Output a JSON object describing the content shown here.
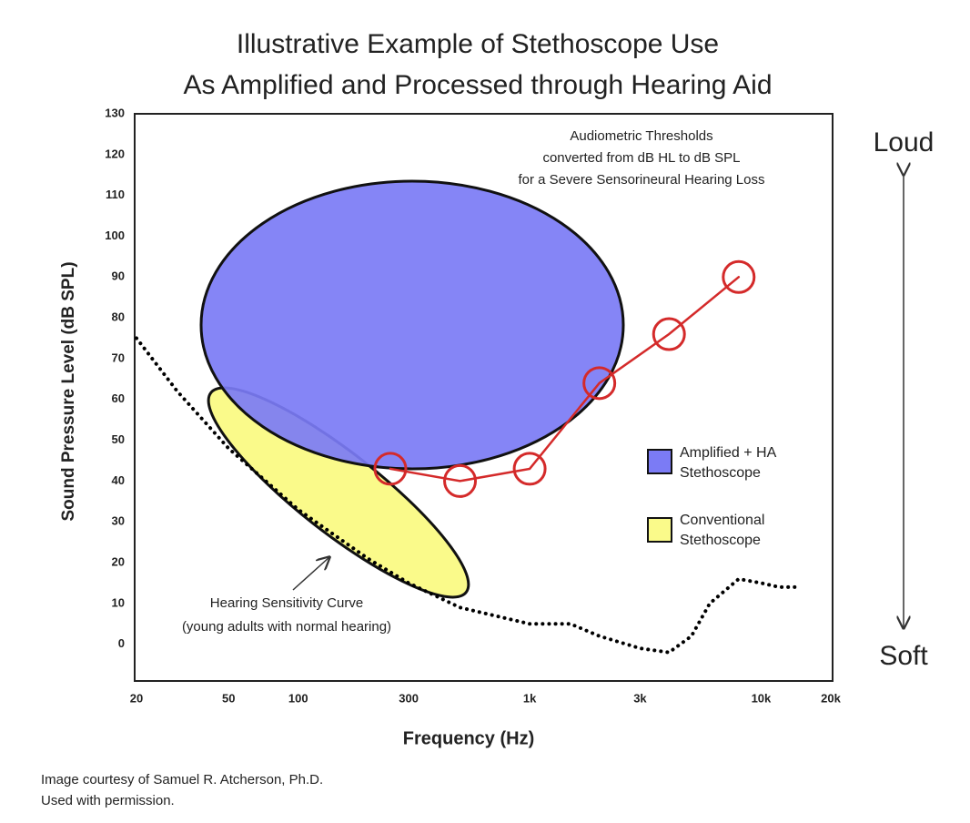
{
  "chart_data": {
    "type": "line",
    "title": [
      "Illustrative Example of Stethoscope Use",
      "As Amplified and Processed through Hearing Aid"
    ],
    "x_label": "Frequency (Hz)",
    "y_label": "Sound Pressure Level (dB SPL)",
    "x_scale": "log",
    "xlim": [
      20,
      20000
    ],
    "ylim": [
      -9,
      130
    ],
    "xticks": [
      20,
      50,
      100,
      300,
      {
        "value": 1000,
        "label": "1k"
      },
      {
        "value": 3000,
        "label": "3k"
      },
      {
        "value": 10000,
        "label": "10k"
      },
      {
        "value": 20000,
        "label": "20k"
      }
    ],
    "yticks": [
      0,
      10,
      20,
      30,
      40,
      50,
      60,
      70,
      80,
      90,
      100,
      110,
      120,
      130
    ],
    "series": [
      {
        "color": "#d42a2a",
        "marker": "circle",
        "x": [
          250,
          500,
          1000,
          2000,
          4000,
          8000
        ],
        "values": [
          43,
          40,
          43,
          64,
          76,
          90
        ]
      },
      {
        "color": "#000000",
        "style": "dotted",
        "x": [
          20,
          30,
          50,
          100,
          200,
          300,
          500,
          1000,
          1500,
          2000,
          3000,
          4000,
          5000,
          6000,
          8000,
          10000,
          12000,
          14000
        ],
        "values": [
          75,
          62,
          48,
          33,
          21,
          15,
          9,
          5,
          5,
          2,
          -1,
          -2,
          2,
          10,
          16,
          15,
          14,
          14
        ]
      }
    ],
    "regions": [
      {
        "name": "Amplified + HA Stethoscope",
        "color": "#7b7bf5"
      },
      {
        "name": "Conventional Stethoscope",
        "color": "#fafa8a"
      }
    ],
    "annotations": [
      [
        "Audiometric Thresholds",
        "converted from dB HL to dB SPL",
        "for a Severe Sensorineural Hearing Loss"
      ],
      [
        "Hearing Sensitivity Curve",
        "(young adults with normal hearing)"
      ]
    ],
    "side_labels": {
      "top": "Loud",
      "bottom": "Soft"
    },
    "footnotes": [
      "Image courtesy of Samuel R. Atcherson, Ph.D.",
      "Used with permission."
    ]
  }
}
